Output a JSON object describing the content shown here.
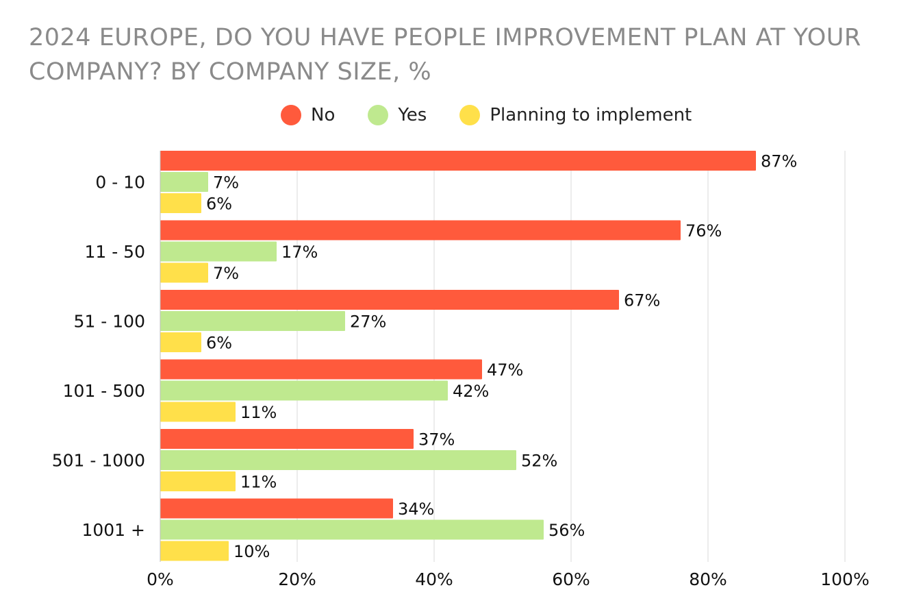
{
  "chart_data": {
    "type": "bar",
    "orientation": "horizontal",
    "title": "2024 EUROPE, DO YOU HAVE PEOPLE IMPROVEMENT PLAN AT YOUR COMPANY? BY COMPANY SIZE, %",
    "categories": [
      "0 - 10",
      "11 - 50",
      "51 - 100",
      "101 - 500",
      "501 - 1000",
      "1001 +"
    ],
    "series": [
      {
        "name": "No",
        "color": "#ff5a3c",
        "values": [
          87,
          76,
          67,
          47,
          37,
          34
        ],
        "labels": [
          "87%",
          "76%",
          "67%",
          "47%",
          "37%",
          "34%"
        ]
      },
      {
        "name": "Yes",
        "color": "#bfe98f",
        "values": [
          7,
          17,
          27,
          42,
          52,
          56
        ],
        "labels": [
          "7%",
          "17%",
          "27%",
          "42%",
          "52%",
          "56%"
        ]
      },
      {
        "name": "Planning to implement",
        "color": "#ffe04a",
        "values": [
          6,
          7,
          6,
          11,
          11,
          10
        ],
        "labels": [
          "6%",
          "7%",
          "6%",
          "11%",
          "11%",
          "10%"
        ]
      }
    ],
    "xlim": [
      0,
      100
    ],
    "xticks": [
      0,
      20,
      40,
      60,
      80,
      100
    ],
    "xtick_labels": [
      "0%",
      "20%",
      "40%",
      "60%",
      "80%",
      "100%"
    ],
    "xlabel": "",
    "ylabel": "",
    "grid": true,
    "legend_position": "top"
  }
}
